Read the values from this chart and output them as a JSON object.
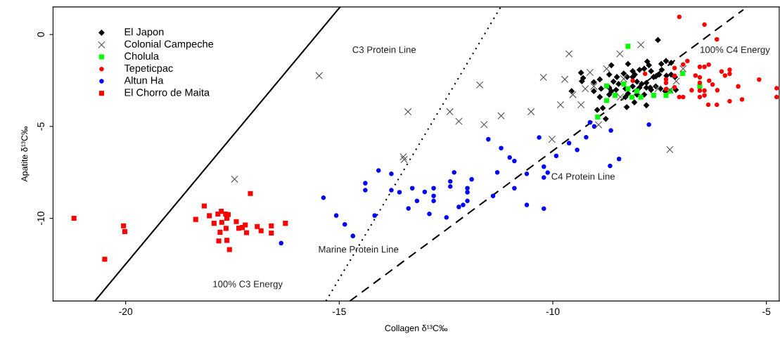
{
  "chart_data": {
    "type": "scatter",
    "xlabel": "Collagen δ¹³C‰",
    "ylabel": "Apatite δ¹³C‰",
    "xlim": [
      -21.7,
      -4.7
    ],
    "ylim": [
      -14.5,
      1.5
    ],
    "xticks": [
      -20,
      -15,
      -10,
      -5
    ],
    "yticks": [
      -10,
      -5,
      0
    ],
    "grid": false,
    "legend": "top left",
    "series": [
      {
        "name": "El Japon",
        "color": "#000000",
        "marker": "diamond",
        "x": [
          -7.54,
          -8.24,
          -7.79,
          -7.46,
          -7.35,
          -7.23,
          -8.63,
          -9.34,
          -9.29,
          -9.32,
          -9.04,
          -8.9,
          -8.68,
          -8.5,
          -8.34,
          -8.26,
          -8.13,
          -8.08,
          -7.97,
          -7.86,
          -7.75,
          -7.7,
          -7.64,
          -7.59,
          -7.51,
          -7.45,
          -7.34,
          -7.23,
          -7.14,
          -8.58,
          -8.46,
          -8.13,
          -8.03,
          -7.92,
          -7.81,
          -7.72,
          -7.97,
          -7.81,
          -9.56,
          -9.04,
          -8.87,
          -8.68,
          -8.52,
          -8.3,
          -8.13,
          -8.24,
          -8.03,
          -7.86,
          -7.7,
          -7.59,
          -7.48,
          -8.9,
          -8.68,
          -8.63,
          -8.3,
          -8.09,
          -7.81,
          -8.27,
          -8.96,
          -8.83,
          -8.76,
          -7.37,
          -7.12
        ],
        "values": [
          -0.3,
          -1.6,
          -1.47,
          -1.6,
          -1.44,
          -1.54,
          -1.67,
          -2.08,
          -2.37,
          -2.54,
          -2.59,
          -2.44,
          -2.18,
          -2.31,
          -2.12,
          -2.31,
          -1.99,
          -2.18,
          -1.92,
          -1.86,
          -1.67,
          -1.99,
          -2.31,
          -2.28,
          -2.18,
          -1.92,
          -2.24,
          -2.18,
          -2.31,
          -2.56,
          -2.69,
          -2.31,
          -2.56,
          -2.69,
          -2.63,
          -2.89,
          -2.89,
          -2.89,
          -3.08,
          -3.08,
          -2.95,
          -2.89,
          -3.01,
          -2.95,
          -2.82,
          -3.21,
          -3.27,
          -3.27,
          -3.01,
          -2.82,
          -2.95,
          -3.4,
          -3.27,
          -3.08,
          -3.4,
          -3.69,
          -3.85,
          -3.95,
          -4.1,
          -4.0,
          -4.59,
          -3.08,
          -3.01
        ]
      },
      {
        "name": "Colonial Campeche",
        "color": "#555555",
        "marker": "cross",
        "x": [
          -17.45,
          -15.47,
          -13.39,
          -12.41,
          -12.2,
          -11.71,
          -11.21,
          -11.61,
          -10.51,
          -10.22,
          -13.5,
          -13.48,
          -10.02,
          -9.62,
          -9.72,
          -9.13,
          -8.74,
          -8.43,
          -7.94,
          -9.24,
          -9.04,
          -9.82,
          -9.34,
          -9.53,
          -8.93,
          -8.42,
          -8.34,
          -7.54,
          -7.26,
          -7.11,
          -6.95,
          -7.26
        ],
        "values": [
          -7.87,
          -2.24,
          -4.2,
          -4.2,
          -4.72,
          -2.74,
          -4.42,
          -4.9,
          -4.2,
          -2.33,
          -6.65,
          -6.8,
          -5.7,
          -1.05,
          -2.44,
          -2.06,
          -1.86,
          -1.05,
          -0.56,
          -2.95,
          -2.82,
          -3.82,
          -3.82,
          -3.27,
          -4.91,
          -3.4,
          -2.41,
          -2.95,
          -3.01,
          -2.54,
          -1.86,
          -6.26
        ]
      },
      {
        "name": "Cholula",
        "color": "#00ff00",
        "marker": "square",
        "x": [
          -8.24,
          -8.74,
          -8.34,
          -8.24,
          -8.54,
          -8.74,
          -8.03,
          -8.15,
          -7.94,
          -7.64,
          -7.35,
          -7.25,
          -6.96,
          -6.56,
          -8.95
        ],
        "values": [
          -0.64,
          -2.8,
          -2.69,
          -2.95,
          -3.31,
          -3.59,
          -3.08,
          -3.41,
          -3.41,
          -3.31,
          -3.31,
          -3.08,
          -2.12,
          -2.82,
          -4.49
        ]
      },
      {
        "name": "Tepeticpac",
        "color": "#ff0000",
        "marker": "circle",
        "x": [
          -7.04,
          -6.45,
          -6.16,
          -6.85,
          -6.95,
          -7.15,
          -6.56,
          -6.45,
          -6.35,
          -6.05,
          -5.86,
          -5.86,
          -5.97,
          -6.66,
          -6.56,
          -7.15,
          -7.35,
          -7.35,
          -6.34,
          -6.26,
          -6.56,
          -6.45,
          -6.15,
          -6.56,
          -6.75,
          -6.45,
          -6.56,
          -7.04,
          -6.95,
          -7.35,
          -7.15,
          -6.36,
          -6.16,
          -5.86,
          -5.57,
          -5.66,
          -5.17,
          -4.76,
          -4.76,
          -7.84,
          -8.13
        ],
        "values": [
          0.96,
          0.54,
          -0.26,
          -1.44,
          -1.63,
          -1.82,
          -1.76,
          -1.76,
          -1.64,
          -2.01,
          -1.92,
          -2.14,
          -2.23,
          -2.23,
          -2.33,
          -2.24,
          -2.44,
          -2.63,
          -2.51,
          -2.72,
          -2.63,
          -3.05,
          -3.03,
          -3.05,
          -3.03,
          -3.31,
          -3.4,
          -3.4,
          -3.4,
          -2.97,
          -2.87,
          -3.82,
          -3.82,
          -3.63,
          -3.53,
          -2.82,
          -2.45,
          -2.92,
          -3.4,
          -2.14,
          -2.51
        ]
      },
      {
        "name": "Altun Ha",
        "color": "#0000ff",
        "marker": "circle",
        "x": [
          -16.36,
          -15.37,
          -15.07,
          -14.87,
          -14.68,
          -14.17,
          -14.39,
          -14.39,
          -14.08,
          -13.78,
          -13.78,
          -13.59,
          -13.29,
          -13.18,
          -13.38,
          -13.0,
          -12.89,
          -12.79,
          -12.79,
          -12.79,
          -12.49,
          -12.4,
          -12.4,
          -12.31,
          -12.2,
          -12.1,
          -12.0,
          -12.0,
          -12.0,
          -11.9,
          -11.51,
          -11.21,
          -11.4,
          -11.3,
          -11.01,
          -10.9,
          -10.9,
          -10.61,
          -10.61,
          -10.32,
          -10.21,
          -10.12,
          -10.21,
          -10.21,
          -9.92,
          -9.62,
          -9.43,
          -9.22,
          -9.13,
          -9.03,
          -8.64,
          -8.45,
          -7.75,
          -8.66
        ],
        "values": [
          -11.35,
          -8.88,
          -9.85,
          -10.33,
          -10.96,
          -9.85,
          -8.09,
          -8.47,
          -7.4,
          -7.58,
          -8.47,
          -8.58,
          -8.36,
          -9.05,
          -9.46,
          -8.56,
          -9.76,
          -8.36,
          -8.78,
          -9.05,
          -9.95,
          -7.99,
          -8.27,
          -7.5,
          -9.38,
          -9.27,
          -8.36,
          -8.58,
          -9.05,
          -7.88,
          -5.7,
          -6.18,
          -8.78,
          -7.5,
          -6.69,
          -6.88,
          -8.36,
          -7.58,
          -9.27,
          -5.6,
          -7.19,
          -7.51,
          -7.78,
          -9.47,
          -6.6,
          -5.91,
          -6.28,
          -5.59,
          -4.78,
          -5.0,
          -5.22,
          -6.77,
          -4.9,
          -7.15
        ]
      },
      {
        "name": "El Chorro de Maita",
        "color": "#ff0000",
        "marker": "square",
        "x": [
          -21.21,
          -20.05,
          -20.02,
          -20.49,
          -18.16,
          -18.36,
          -18.04,
          -17.84,
          -17.76,
          -17.66,
          -17.6,
          -17.63,
          -17.93,
          -17.75,
          -17.65,
          -17.79,
          -17.82,
          -17.63,
          -17.57,
          -17.08,
          -17.41,
          -17.35,
          -17.27,
          -17.2,
          -17.17,
          -16.92,
          -16.83,
          -16.59,
          -16.59,
          -16.26
        ],
        "values": [
          -10.0,
          -10.41,
          -10.72,
          -12.23,
          -9.33,
          -10.06,
          -9.86,
          -9.77,
          -9.62,
          -9.77,
          -9.8,
          -10.0,
          -10.27,
          -10.22,
          -10.55,
          -10.76,
          -11.23,
          -11.2,
          -11.7,
          -8.65,
          -10.18,
          -10.54,
          -10.5,
          -10.36,
          -10.78,
          -10.45,
          -10.68,
          -10.41,
          -10.8,
          -10.27
        ]
      },
      {
        "type": "line",
        "color": "#000000",
        "line_style": "solid",
        "x": [
          -20.72,
          -14.98
        ],
        "values": [
          -14.5,
          1.5
        ]
      },
      {
        "type": "line",
        "color": "#000000",
        "line_style": "dotted",
        "x": [
          -15.31,
          -11.22
        ],
        "values": [
          -14.5,
          1.5
        ]
      },
      {
        "type": "line",
        "color": "#000000",
        "line_style": "dashed",
        "x": [
          -14.75,
          -5.54
        ],
        "values": [
          -14.5,
          1.35
        ]
      }
    ],
    "annotations": [
      "C3 Protein Line",
      "100% C4 Energy",
      "C4 Protein Line",
      {
        "text": "Marine Protein Line",
        "x": -14.55,
        "y": -11.73
      },
      "100% C3 Energy"
    ]
  }
}
